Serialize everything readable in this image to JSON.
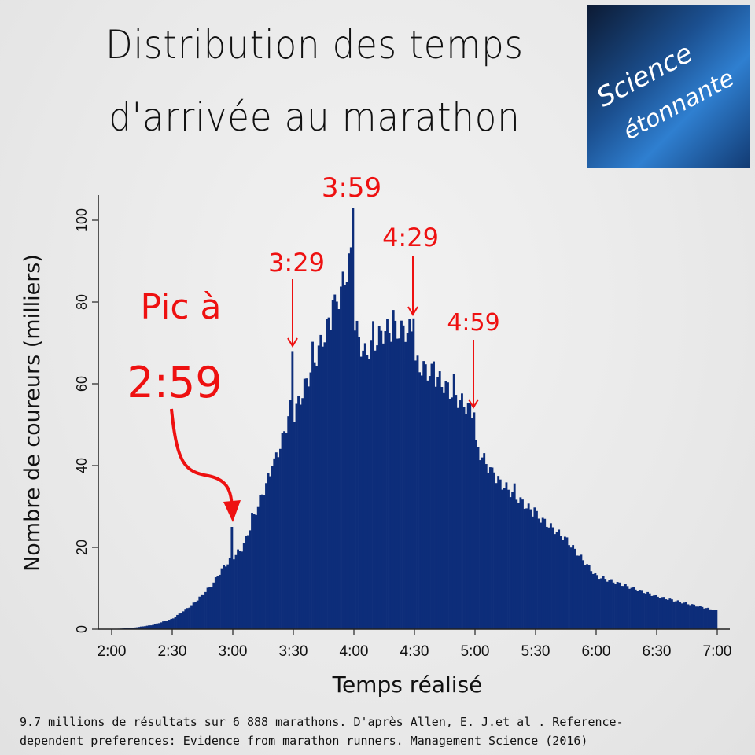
{
  "chart_data": {
    "type": "bar",
    "title_lines": [
      "Distribution des temps",
      "d'arrivée au marathon"
    ],
    "xlabel": "Temps réalisé",
    "ylabel": "Nombre de coureurs (milliers)",
    "x_unit": "minutes",
    "xlim": [
      120,
      420
    ],
    "ylim": [
      0,
      105
    ],
    "x_ticks": [
      120,
      150,
      180,
      210,
      240,
      270,
      300,
      330,
      360,
      390,
      420
    ],
    "x_tick_labels": [
      "2:00",
      "2:30",
      "3:00",
      "3:30",
      "4:00",
      "4:30",
      "5:00",
      "5:30",
      "6:00",
      "6:30",
      "7:00"
    ],
    "y_ticks": [
      0,
      20,
      40,
      60,
      80,
      100
    ],
    "y_tick_labels": [
      "0",
      "20",
      "40",
      "60",
      "80",
      "100"
    ],
    "bin_width_minutes": 1,
    "envelope": [
      [
        120,
        0
      ],
      [
        130,
        0.3
      ],
      [
        140,
        1
      ],
      [
        150,
        2.5
      ],
      [
        160,
        6
      ],
      [
        170,
        11
      ],
      [
        175,
        15
      ],
      [
        179,
        17
      ],
      [
        185,
        20
      ],
      [
        190,
        27
      ],
      [
        200,
        40
      ],
      [
        205,
        47
      ],
      [
        209,
        55
      ],
      [
        210,
        52
      ],
      [
        220,
        65
      ],
      [
        230,
        78
      ],
      [
        235,
        85
      ],
      [
        239,
        92
      ],
      [
        240,
        75
      ],
      [
        245,
        67
      ],
      [
        250,
        70
      ],
      [
        255,
        73
      ],
      [
        265,
        73
      ],
      [
        269,
        73
      ],
      [
        270,
        65
      ],
      [
        280,
        62
      ],
      [
        290,
        57
      ],
      [
        299,
        53
      ],
      [
        300,
        45
      ],
      [
        310,
        37
      ],
      [
        330,
        28
      ],
      [
        345,
        22
      ],
      [
        360,
        13
      ],
      [
        390,
        8
      ],
      [
        420,
        4.5
      ]
    ],
    "spikes": [
      [
        179,
        25
      ],
      [
        209,
        68
      ],
      [
        239,
        103
      ],
      [
        269,
        76
      ],
      [
        299,
        53
      ]
    ],
    "bar_color": "#0d2d7a",
    "annotation_color": "#ee1111",
    "annotations": [
      {
        "label": "Pic à",
        "x": 179
      },
      {
        "label": "2:59",
        "x": 179
      },
      {
        "label": "3:29",
        "x": 209
      },
      {
        "label": "3:59",
        "x": 239
      },
      {
        "label": "4:29",
        "x": 269
      },
      {
        "label": "4:59",
        "x": 299
      }
    ]
  },
  "logo": {
    "line1": "Science",
    "line2": "étonnante"
  },
  "caption": {
    "line1": "9.7 millions de résultats sur 6 888 marathons. D'après Allen, E. J.et al . Reference-",
    "line2": "dependent preferences: Evidence from marathon runners. Management Science (2016)"
  }
}
